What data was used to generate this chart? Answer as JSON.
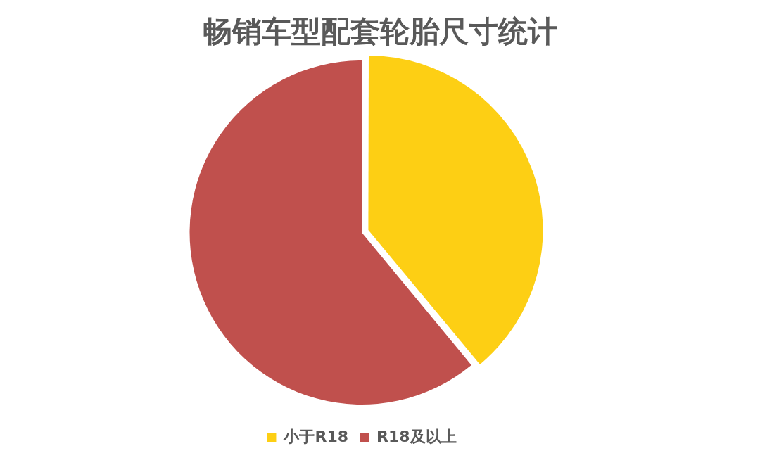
{
  "chart_data": {
    "type": "pie",
    "title": "畅销车型配套轮胎尺寸统计",
    "categories": [
      "小于R18",
      "R18及以上"
    ],
    "values": [
      39,
      61
    ],
    "colors": [
      "#fdcf14",
      "#c0504d"
    ],
    "legend": "bottom"
  }
}
